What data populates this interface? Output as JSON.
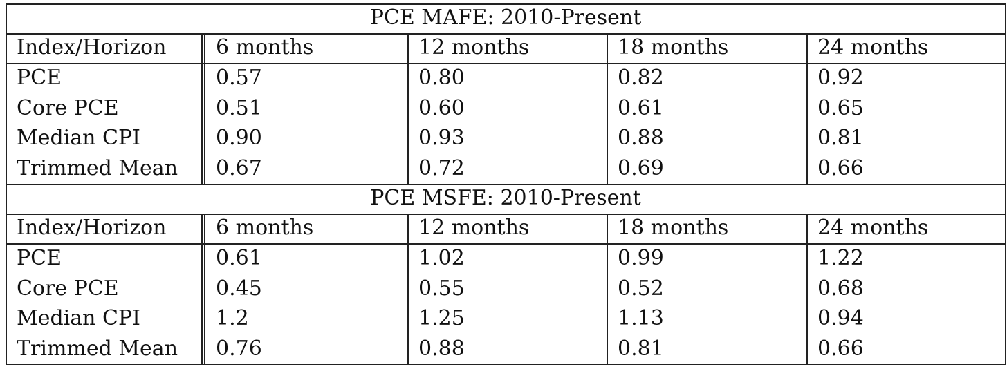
{
  "tables": [
    {
      "title": "PCE MAFE: 2010-Present",
      "header": [
        "Index/Horizon",
        "6 months",
        "12 months",
        "18 months",
        "24 months"
      ],
      "rows": [
        [
          "PCE",
          "0.57",
          "0.80",
          "0.82",
          "0.92"
        ],
        [
          "Core PCE",
          "0.51",
          "0.60",
          "0.61",
          "0.65"
        ],
        [
          "Median CPI",
          "0.90",
          "0.93",
          "0.88",
          "0.81"
        ],
        [
          "Trimmed Mean",
          "0.67",
          "0.72",
          "0.69",
          "0.66"
        ]
      ]
    },
    {
      "title": "PCE MSFE: 2010-Present",
      "header": [
        "Index/Horizon",
        "6 months",
        "12 months",
        "18 months",
        "24 months"
      ],
      "rows": [
        [
          "PCE",
          "0.61",
          "1.02",
          "0.99",
          "1.22"
        ],
        [
          "Core PCE",
          "0.45",
          "0.55",
          "0.52",
          "0.68"
        ],
        [
          "Median CPI",
          "1.2",
          "1.25",
          "1.13",
          "0.94"
        ],
        [
          "Trimmed Mean",
          "0.76",
          "0.88",
          "0.81",
          "0.66"
        ]
      ]
    }
  ]
}
